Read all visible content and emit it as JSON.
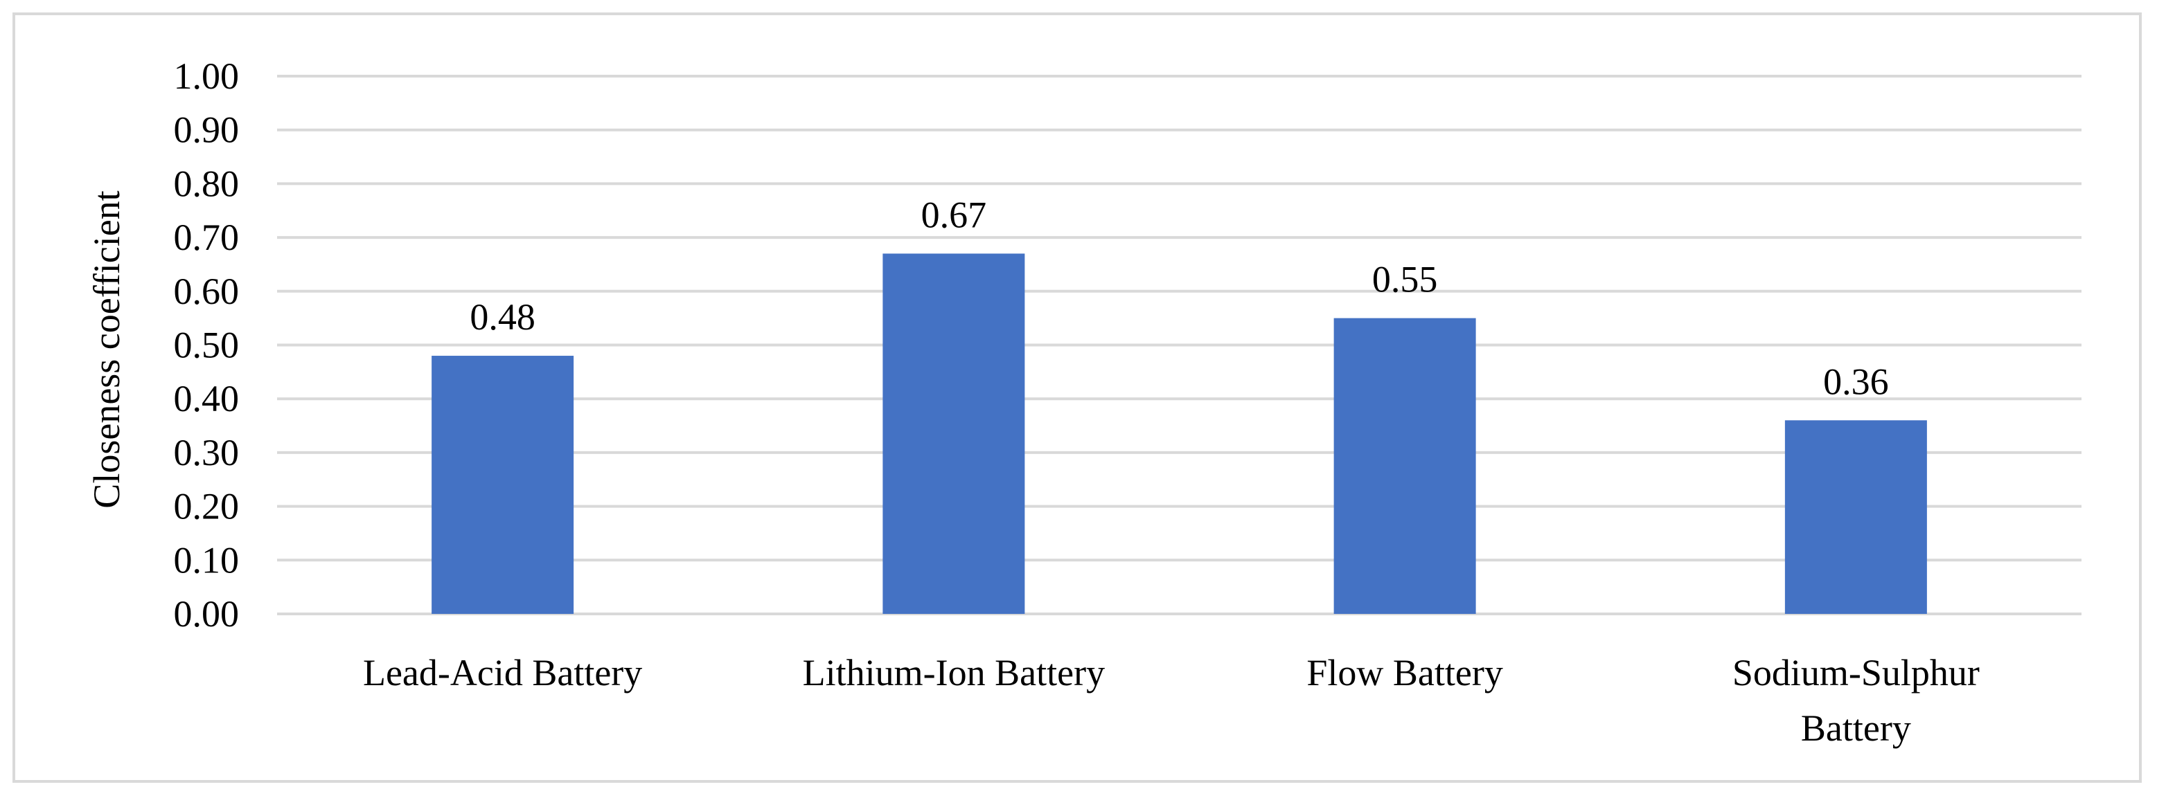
{
  "chart_data": {
    "type": "bar",
    "title": "",
    "xlabel": "",
    "ylabel": "Closeness coefficient",
    "ylim": [
      0,
      1
    ],
    "y_ticks": [
      "0.00",
      "0.10",
      "0.20",
      "0.30",
      "0.40",
      "0.50",
      "0.60",
      "0.70",
      "0.80",
      "0.90",
      "1.00"
    ],
    "categories": [
      [
        "Lead-Acid Battery"
      ],
      [
        "Lithium-Ion Battery"
      ],
      [
        "Flow Battery"
      ],
      [
        "Sodium-Sulphur",
        "Battery"
      ]
    ],
    "values": [
      0.48,
      0.67,
      0.55,
      0.36
    ],
    "data_labels": [
      "0.48",
      "0.67",
      "0.55",
      "0.36"
    ],
    "grid": true,
    "legend": "none",
    "colors": {
      "bar": "#4472C4",
      "grid": "#d9d9d9",
      "frame": "#d9d9d9",
      "text": "#000000"
    }
  }
}
